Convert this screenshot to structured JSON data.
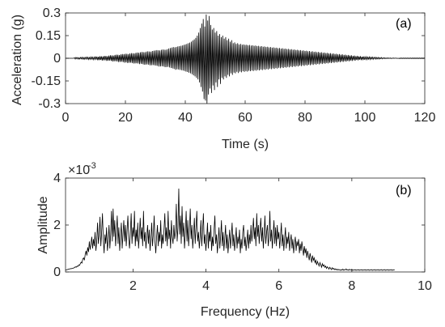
{
  "chart_data": [
    {
      "type": "line",
      "panel_label": "(a)",
      "xlabel": "Time (s)",
      "ylabel": "Acceleration (g)",
      "xlim": [
        0,
        120
      ],
      "ylim": [
        -0.3,
        0.3
      ],
      "x_ticks": [
        0,
        20,
        40,
        60,
        80,
        100,
        120
      ],
      "x_tick_labels": [
        "0",
        "20",
        "40",
        "60",
        "80",
        "100",
        "120"
      ],
      "y_ticks": [
        -0.3,
        -0.15,
        0,
        0.15,
        0.3
      ],
      "y_tick_labels": [
        "-0.3",
        "-0.15",
        "0",
        "0.15",
        "0.3"
      ],
      "grid": false,
      "color": "#000000",
      "series": [
        {
          "x_start": 0,
          "x_step": 0.25,
          "values": [
            0.0,
            0.0,
            0.0,
            0.0,
            0.0,
            0.0,
            0.0,
            0.0,
            0.0,
            0.0,
            0.0,
            0.0,
            0.004,
            -0.005,
            0.006,
            -0.003,
            0.005,
            -0.006,
            0.004,
            -0.005,
            0.006,
            -0.004,
            0.007,
            -0.006,
            0.005,
            -0.007,
            0.006,
            -0.005,
            0.008,
            -0.006,
            0.007,
            -0.008,
            0.006,
            -0.007,
            0.009,
            -0.006,
            0.008,
            -0.009,
            0.007,
            -0.008,
            0.012,
            -0.009,
            0.011,
            -0.013,
            0.01,
            -0.012,
            0.014,
            -0.011,
            0.013,
            -0.015,
            0.012,
            -0.014,
            0.016,
            -0.013,
            0.015,
            -0.017,
            0.014,
            -0.016,
            0.018,
            -0.015,
            0.02,
            -0.017,
            0.019,
            -0.021,
            0.018,
            -0.02,
            0.022,
            -0.019,
            0.024,
            -0.021,
            0.023,
            -0.025,
            0.022,
            -0.024,
            0.026,
            -0.023,
            0.028,
            -0.025,
            0.027,
            -0.029,
            0.03,
            -0.027,
            0.029,
            -0.031,
            0.028,
            -0.03,
            0.032,
            -0.029,
            0.034,
            -0.031,
            0.033,
            -0.035,
            0.032,
            -0.034,
            0.036,
            -0.033,
            0.038,
            -0.035,
            0.037,
            -0.039,
            0.04,
            -0.037,
            0.042,
            -0.039,
            0.041,
            -0.043,
            0.04,
            -0.042,
            0.044,
            -0.041,
            0.046,
            -0.043,
            0.045,
            -0.047,
            0.044,
            -0.046,
            0.048,
            -0.045,
            0.05,
            -0.047,
            0.052,
            -0.049,
            0.054,
            -0.051,
            0.053,
            -0.055,
            0.052,
            -0.054,
            0.056,
            -0.053,
            0.058,
            -0.055,
            0.057,
            -0.059,
            0.056,
            -0.058,
            0.06,
            -0.057,
            0.065,
            -0.061,
            0.068,
            -0.064,
            0.071,
            -0.067,
            0.074,
            -0.07,
            0.072,
            -0.076,
            0.075,
            -0.073,
            0.078,
            -0.074,
            0.08,
            -0.077,
            0.082,
            -0.079,
            0.085,
            -0.081,
            0.088,
            -0.084,
            0.092,
            -0.088,
            0.095,
            -0.091,
            0.1,
            -0.096,
            0.104,
            -0.1,
            0.11,
            -0.106,
            0.118,
            -0.113,
            0.125,
            -0.12,
            0.135,
            -0.13,
            0.15,
            -0.14,
            0.17,
            -0.16,
            0.2,
            -0.19,
            0.23,
            -0.22,
            0.26,
            -0.27,
            0.21,
            -0.28,
            0.29,
            -0.3,
            0.25,
            -0.24,
            0.28,
            -0.2,
            0.22,
            -0.23,
            0.19,
            -0.18,
            0.2,
            -0.21,
            0.17,
            -0.16,
            0.18,
            -0.19,
            0.15,
            -0.14,
            0.16,
            -0.17,
            0.14,
            -0.13,
            0.15,
            -0.14,
            0.13,
            -0.12,
            0.14,
            -0.13,
            0.12,
            -0.11,
            0.13,
            -0.12,
            0.11,
            -0.1,
            0.12,
            -0.11,
            0.1,
            -0.095,
            0.105,
            -0.1,
            0.095,
            -0.09,
            0.1,
            -0.098,
            0.092,
            -0.088,
            0.095,
            -0.093,
            0.09,
            -0.086,
            0.092,
            -0.09,
            0.088,
            -0.085,
            0.09,
            -0.088,
            0.086,
            -0.083,
            0.088,
            -0.086,
            0.084,
            -0.081,
            0.086,
            -0.084,
            0.082,
            -0.079,
            0.084,
            -0.082,
            0.08,
            -0.077,
            0.082,
            -0.08,
            0.078,
            -0.075,
            0.08,
            -0.078,
            0.076,
            -0.073,
            0.078,
            -0.076,
            0.074,
            -0.071,
            0.076,
            -0.074,
            0.072,
            -0.069,
            0.074,
            -0.072,
            0.07,
            -0.067,
            0.072,
            -0.07,
            0.068,
            -0.065,
            0.07,
            -0.068,
            0.066,
            -0.063,
            0.068,
            -0.066,
            0.064,
            -0.061,
            0.066,
            -0.064,
            0.062,
            -0.059,
            0.064,
            -0.062,
            0.06,
            -0.057,
            0.062,
            -0.06,
            0.058,
            -0.055,
            0.06,
            -0.058,
            0.056,
            -0.053,
            0.058,
            -0.056,
            0.054,
            -0.051,
            0.056,
            -0.054,
            0.052,
            -0.049,
            0.054,
            -0.052,
            0.05,
            -0.047,
            0.052,
            -0.05,
            0.048,
            -0.045,
            0.05,
            -0.048,
            0.046,
            -0.043,
            0.048,
            -0.046,
            0.044,
            -0.041,
            0.046,
            -0.044,
            0.042,
            -0.039,
            0.044,
            -0.042,
            0.04,
            -0.037,
            0.042,
            -0.04,
            0.038,
            -0.035,
            0.04,
            -0.038,
            0.036,
            -0.033,
            0.038,
            -0.036,
            0.034,
            -0.031,
            0.036,
            -0.034,
            0.032,
            -0.029,
            0.034,
            -0.032,
            0.03,
            -0.027,
            0.032,
            -0.03,
            0.028,
            -0.025,
            0.03,
            -0.028,
            0.026,
            -0.023,
            0.028,
            -0.026,
            0.024,
            -0.021,
            0.026,
            -0.024,
            0.022,
            -0.019,
            0.024,
            -0.022,
            0.02,
            -0.017,
            0.022,
            -0.02,
            0.018,
            -0.015,
            0.02,
            -0.018,
            0.016,
            -0.013,
            0.018,
            -0.016,
            0.014,
            -0.011,
            0.016,
            -0.014,
            0.012,
            -0.009,
            0.014,
            -0.012,
            0.01,
            -0.008,
            0.012,
            -0.01,
            0.009,
            -0.007,
            0.01,
            -0.009,
            0.008,
            -0.006,
            0.009,
            -0.008,
            0.007,
            -0.005,
            0.008,
            -0.007,
            0.006,
            -0.004,
            0.007,
            -0.006,
            0.005,
            -0.004,
            0.006,
            -0.005,
            0.004,
            -0.003,
            0.005,
            -0.004,
            0.003,
            -0.002,
            0.004,
            -0.003,
            0.002,
            -0.002,
            0.003,
            -0.002,
            0.002,
            -0.001,
            0.002,
            -0.002,
            0.001,
            -0.001,
            0.002,
            -0.001,
            0.001,
            0.0,
            0.001,
            -0.001,
            0.0,
            0.0
          ]
        }
      ]
    },
    {
      "type": "line",
      "panel_label": "(b)",
      "xlabel": "Frequency (Hz)",
      "ylabel": "Amplitude",
      "xlim": [
        0.15,
        10
      ],
      "ylim": [
        0,
        4
      ],
      "y_scale_base": "×10",
      "y_scale_exponent": "-3",
      "x_ticks": [
        2,
        4,
        6,
        8,
        10
      ],
      "x_tick_labels": [
        "2",
        "4",
        "6",
        "8",
        "10"
      ],
      "y_ticks": [
        0,
        2,
        4
      ],
      "y_tick_labels": [
        "0",
        "2",
        "4"
      ],
      "grid": false,
      "color": "#000000",
      "series": [
        {
          "x_start": 0.15,
          "x_step": 0.0225,
          "values": [
            0.08,
            0.09,
            0.1,
            0.11,
            0.12,
            0.13,
            0.14,
            0.14,
            0.15,
            0.16,
            0.17,
            0.19,
            0.22,
            0.2,
            0.25,
            0.23,
            0.3,
            0.28,
            0.35,
            0.42,
            0.38,
            0.55,
            0.6,
            0.5,
            0.75,
            0.9,
            0.7,
            1.05,
            0.85,
            1.3,
            0.95,
            1.2,
            1.5,
            1.0,
            1.4,
            1.1,
            1.7,
            0.9,
            1.3,
            2.1,
            1.2,
            1.6,
            2.35,
            1.1,
            1.7,
            2.5,
            1.4,
            0.8,
            1.6,
            1.2,
            1.9,
            0.9,
            1.3,
            2.0,
            1.0,
            1.6,
            2.6,
            1.3,
            2.7,
            1.5,
            2.2,
            1.1,
            1.7,
            2.4,
            1.2,
            1.9,
            0.9,
            1.5,
            2.1,
            1.0,
            1.6,
            2.2,
            1.3,
            2.0,
            1.1,
            1.8,
            2.4,
            1.4,
            1.0,
            1.7,
            2.5,
            1.2,
            1.9,
            1.5,
            2.6,
            1.1,
            1.8,
            1.3,
            2.1,
            1.0,
            1.6,
            2.3,
            1.4,
            1.9,
            1.1,
            2.6,
            1.3,
            1.7,
            1.0,
            1.5,
            2.0,
            1.2,
            1.8,
            0.9,
            1.4,
            2.1,
            1.1,
            1.6,
            2.4,
            1.3,
            0.8,
            1.5,
            2.0,
            1.1,
            1.7,
            1.3,
            2.2,
            1.0,
            1.6,
            1.2,
            1.8,
            2.5,
            1.3,
            1.9,
            1.1,
            2.6,
            1.4,
            1.8,
            1.0,
            2.2,
            1.5,
            1.2,
            2.0,
            1.4,
            1.7,
            2.9,
            1.3,
            1.9,
            3.55,
            1.6,
            2.4,
            1.2,
            2.8,
            1.5,
            2.1,
            1.0,
            1.7,
            2.6,
            1.3,
            2.2,
            1.1,
            1.8,
            2.7,
            1.4,
            2.0,
            1.0,
            1.6,
            2.3,
            1.2,
            1.9,
            2.6,
            1.3,
            1.7,
            1.0,
            1.5,
            2.2,
            1.1,
            1.8,
            2.5,
            1.2,
            1.6,
            0.9,
            1.4,
            2.1,
            1.0,
            1.7,
            1.3,
            2.0,
            0.9,
            1.5,
            1.1,
            1.8,
            2.4,
            1.2,
            1.6,
            0.8,
            1.3,
            1.9,
            1.0,
            1.5,
            2.2,
            1.1,
            1.7,
            0.9,
            1.4,
            2.0,
            1.0,
            1.6,
            0.8,
            1.3,
            1.8,
            1.0,
            1.5,
            2.1,
            1.1,
            1.6,
            0.9,
            1.3,
            1.9,
            1.0,
            1.5,
            1.2,
            1.8,
            0.8,
            1.4,
            1.0,
            1.7,
            2.0,
            1.1,
            1.5,
            0.9,
            1.3,
            1.8,
            1.0,
            1.6,
            1.2,
            2.0,
            1.3,
            1.7,
            2.3,
            1.4,
            1.9,
            1.1,
            2.5,
            1.5,
            2.0,
            1.2,
            1.8,
            2.3,
            1.3,
            1.9,
            1.0,
            1.6,
            2.4,
            1.2,
            1.7,
            2.0,
            1.1,
            1.5,
            2.6,
            1.3,
            1.8,
            1.0,
            1.6,
            2.2,
            1.2,
            1.9,
            1.1,
            2.0,
            1.4,
            1.7,
            1.0,
            1.5,
            2.1,
            1.1,
            1.6,
            0.9,
            1.4,
            1.9,
            1.0,
            1.5,
            1.2,
            1.7,
            0.9,
            1.3,
            1.6,
            1.0,
            1.4,
            0.8,
            1.2,
            1.5,
            0.9,
            1.3,
            1.1,
            1.4,
            0.8,
            1.2,
            0.9,
            1.3,
            1.0,
            0.7,
            1.1,
            0.8,
            1.0,
            0.6,
            0.9,
            0.7,
            0.5,
            0.8,
            0.6,
            0.4,
            0.7,
            0.5,
            0.6,
            0.4,
            0.5,
            0.3,
            0.45,
            0.35,
            0.25,
            0.4,
            0.3,
            0.2,
            0.35,
            0.25,
            0.3,
            0.2,
            0.25,
            0.15,
            0.22,
            0.18,
            0.12,
            0.2,
            0.15,
            0.1,
            0.18,
            0.12,
            0.15,
            0.1,
            0.13,
            0.09,
            0.12,
            0.08,
            0.11,
            0.09,
            0.07,
            0.1,
            0.08,
            0.12,
            0.07,
            0.1,
            0.09,
            0.13,
            0.08,
            0.1,
            0.07,
            0.11,
            0.09,
            0.08,
            0.1,
            0.07,
            0.09,
            0.08,
            0.1,
            0.07,
            0.09,
            0.08,
            0.1,
            0.07,
            0.09,
            0.08,
            0.1,
            0.07,
            0.09,
            0.08,
            0.1,
            0.07,
            0.09,
            0.08,
            0.1,
            0.07,
            0.09,
            0.08,
            0.1,
            0.07,
            0.09,
            0.08,
            0.1,
            0.07,
            0.09,
            0.08,
            0.1,
            0.07,
            0.09,
            0.08,
            0.1,
            0.07,
            0.09,
            0.08,
            0.1,
            0.07,
            0.09,
            0.08,
            0.1,
            0.07,
            0.09,
            0.08,
            0.1,
            0.07,
            0.09,
            0.08,
            0.1
          ]
        }
      ]
    }
  ]
}
